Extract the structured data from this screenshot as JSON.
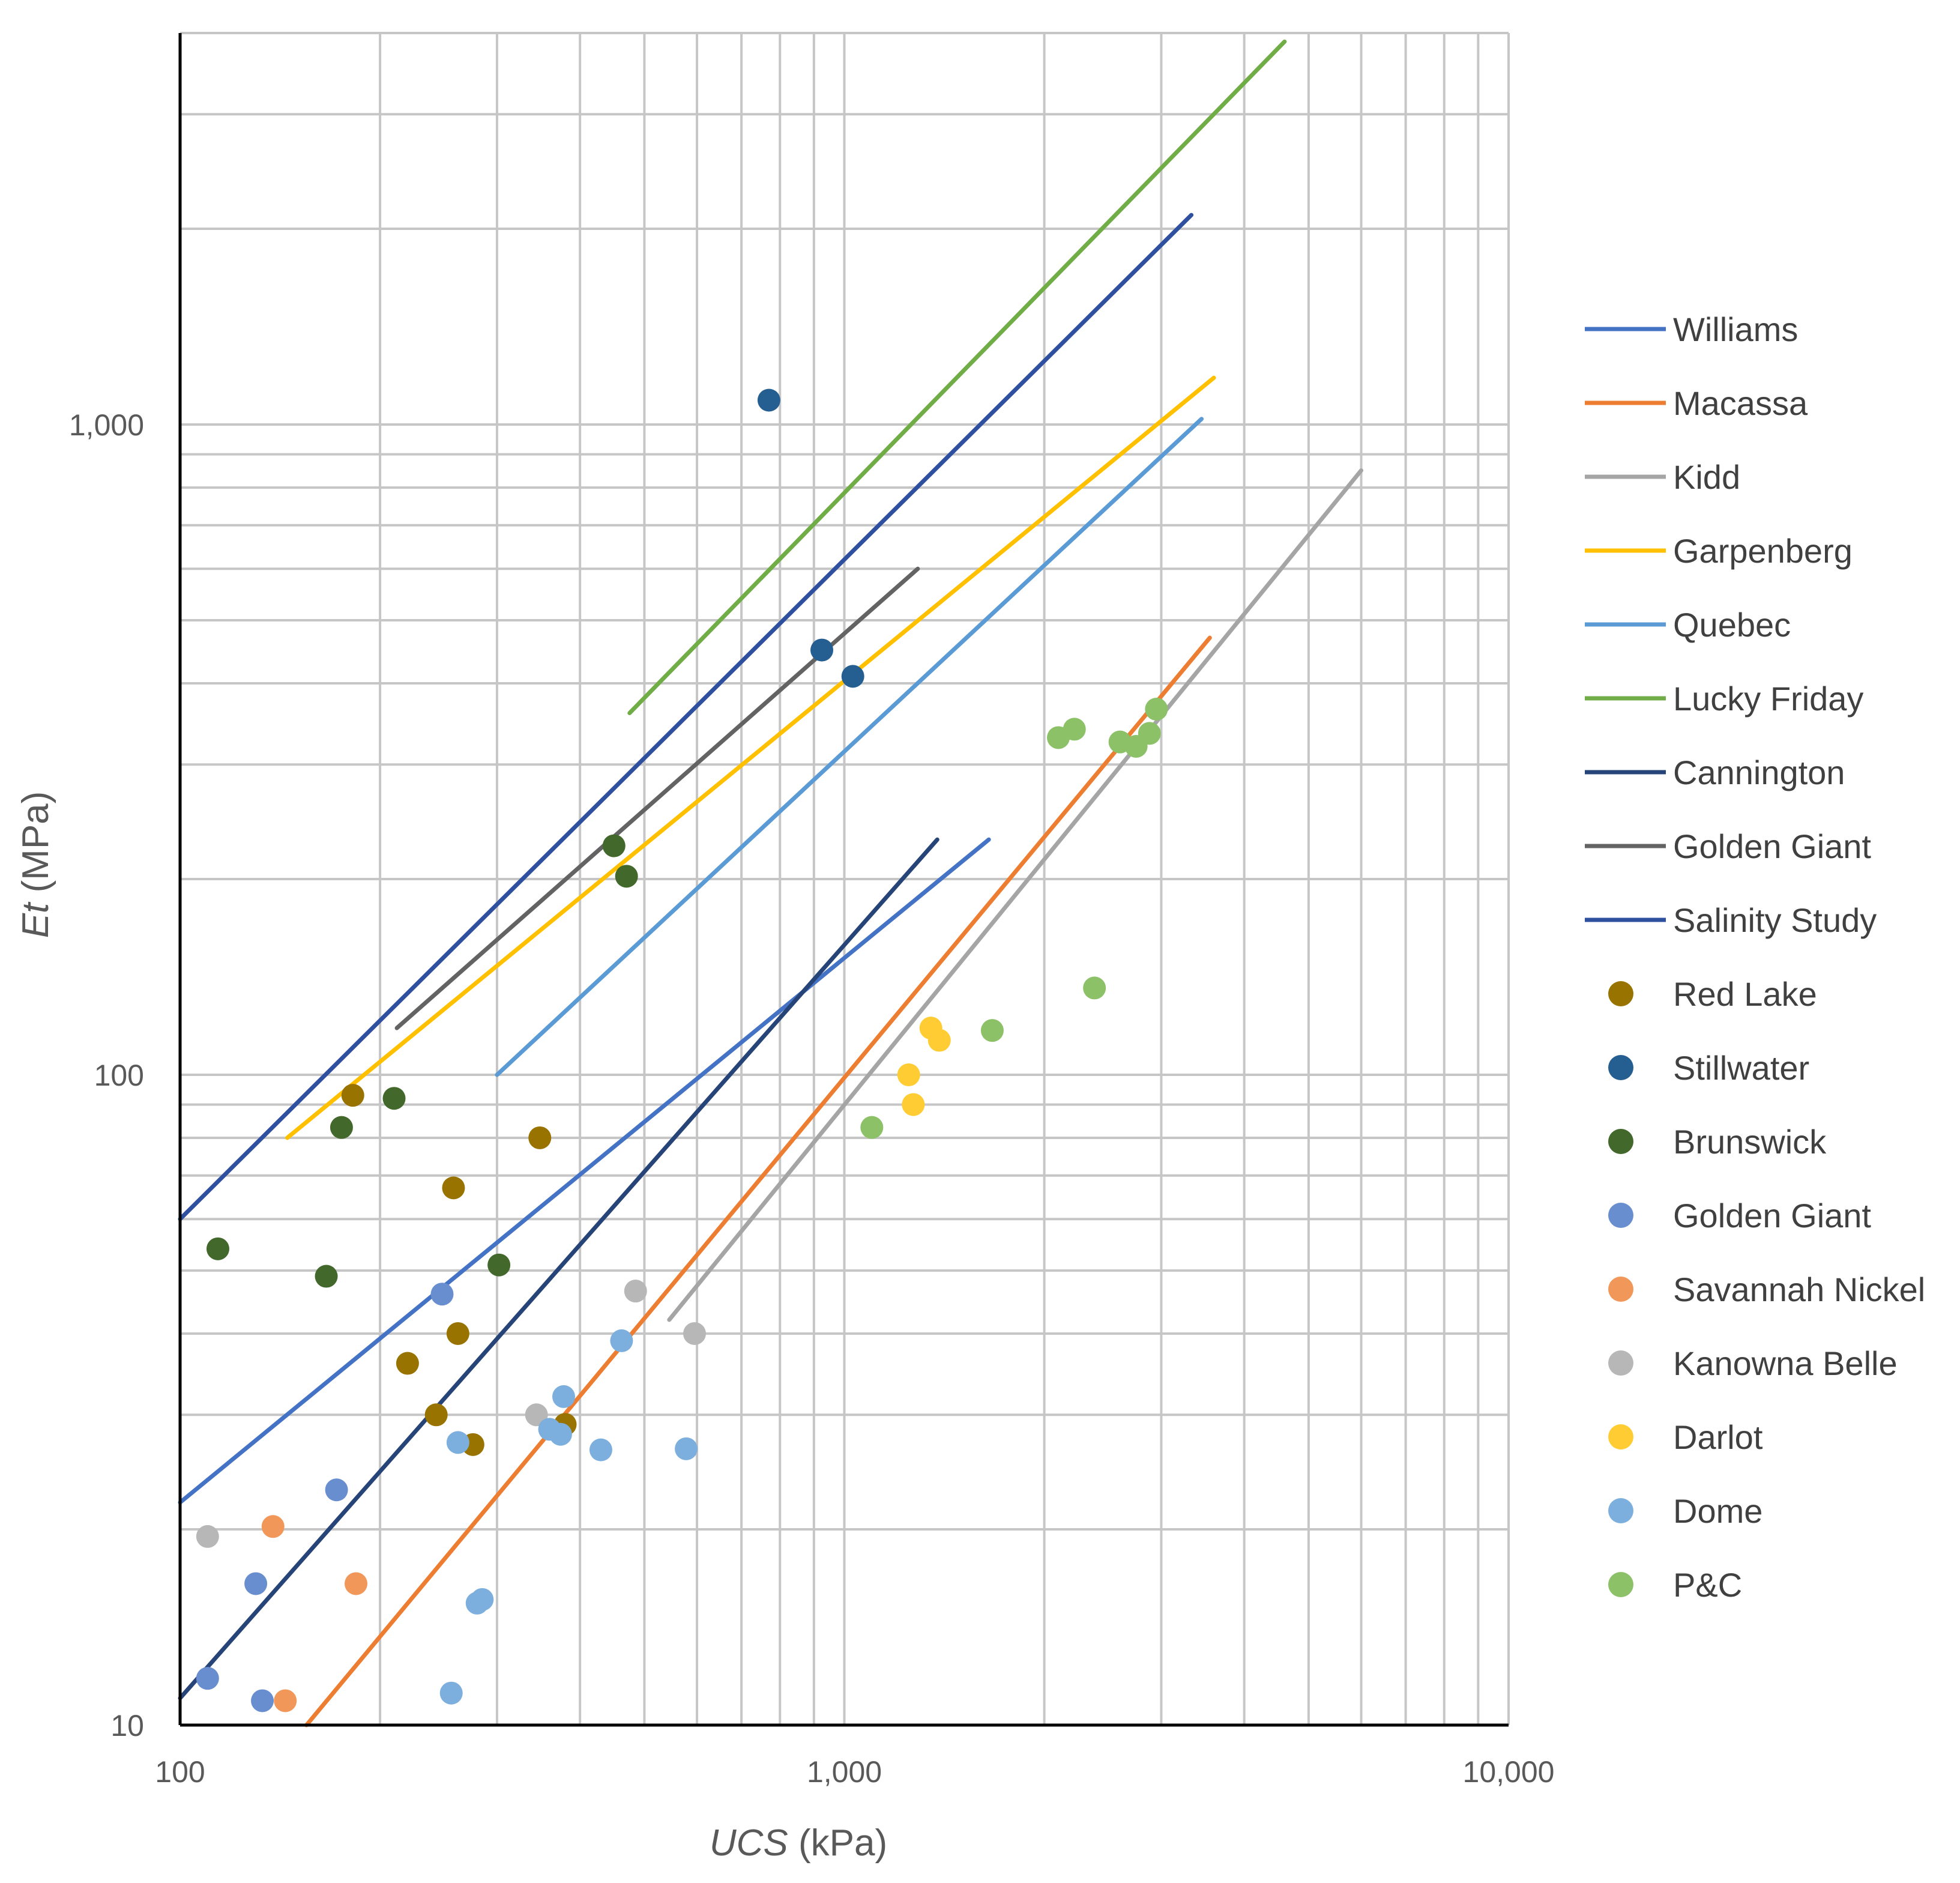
{
  "chart_data": {
    "type": "scatter",
    "xscale": "log",
    "yscale": "log",
    "xlim": [
      100,
      10000
    ],
    "ylim": [
      10,
      4000
    ],
    "x_ticks": [
      100,
      1000,
      10000
    ],
    "x_tick_labels": [
      "100",
      "1,000",
      "10,000"
    ],
    "y_ticks": [
      10,
      100,
      1000
    ],
    "y_tick_labels": [
      "10",
      "100",
      "1,000"
    ],
    "xlabel_italic": "UCS",
    "xlabel_unit": " (kPa)",
    "ylabel_italic": "Et",
    "ylabel_unit": " (MPa)",
    "grid": true,
    "legend_position": "right",
    "lines": [
      {
        "name": "Williams",
        "color": "#4472C4",
        "x": [
          100,
          1650
        ],
        "y": [
          22,
          230
        ]
      },
      {
        "name": "Macassa",
        "color": "#ED7D31",
        "x": [
          155,
          3550
        ],
        "y": [
          10,
          470
        ]
      },
      {
        "name": "Kidd",
        "color": "#A5A5A5",
        "x": [
          545,
          6000
        ],
        "y": [
          42,
          850
        ]
      },
      {
        "name": "Garpenberg",
        "color": "#FFC000",
        "x": [
          145,
          3600
        ],
        "y": [
          80,
          1180
        ]
      },
      {
        "name": "Quebec",
        "color": "#5B9BD5",
        "x": [
          300,
          3450
        ],
        "y": [
          100,
          1020
        ]
      },
      {
        "name": "Lucky Friday",
        "color": "#70AD47",
        "x": [
          475,
          4600
        ],
        "y": [
          360,
          3880
        ]
      },
      {
        "name": "Cannington",
        "color": "#264478",
        "x": [
          100,
          1380
        ],
        "y": [
          11,
          230
        ]
      },
      {
        "name": "Golden Giant",
        "color": "#636363",
        "x": [
          212,
          1290
        ],
        "y": [
          118,
          600
        ]
      },
      {
        "name": "Salinity Study",
        "color": "#2F4F9F",
        "x": [
          100,
          3330
        ],
        "y": [
          60,
          2100
        ]
      }
    ],
    "series": [
      {
        "name": "Red Lake",
        "color": "#997300",
        "points": [
          [
            182,
            93
          ],
          [
            348,
            80
          ],
          [
            258,
            67
          ],
          [
            220,
            36
          ],
          [
            262,
            40
          ],
          [
            243,
            30
          ],
          [
            276,
            27
          ],
          [
            380,
            29
          ]
        ]
      },
      {
        "name": "Stillwater",
        "color": "#255E91",
        "points": [
          [
            770,
            1090
          ],
          [
            925,
            450
          ],
          [
            1030,
            410
          ]
        ]
      },
      {
        "name": "Brunswick",
        "color": "#43682B",
        "points": [
          [
            114,
            54
          ],
          [
            175,
            83
          ],
          [
            210,
            92
          ],
          [
            166,
            49
          ],
          [
            302,
            51
          ],
          [
            450,
            225
          ],
          [
            470,
            202
          ]
        ]
      },
      {
        "name": "Golden Giant",
        "color": "#698ED0",
        "points": [
          [
            248,
            46
          ],
          [
            172,
            23
          ],
          [
            110,
            11.8
          ],
          [
            130,
            16.5
          ],
          [
            133,
            10.9
          ]
        ]
      },
      {
        "name": "Savannah Nickel",
        "color": "#F1975A",
        "points": [
          [
            138,
            20.2
          ],
          [
            184,
            16.5
          ],
          [
            144,
            10.9
          ]
        ]
      },
      {
        "name": "Kanowna Belle",
        "color": "#B7B7B7",
        "points": [
          [
            110,
            19.5
          ],
          [
            485,
            46.5
          ],
          [
            595,
            40
          ],
          [
            344,
            30
          ]
        ]
      },
      {
        "name": "Darlot",
        "color": "#FFCD33",
        "points": [
          [
            1250,
            100
          ],
          [
            1270,
            90
          ],
          [
            1350,
            118
          ],
          [
            1390,
            113
          ]
        ]
      },
      {
        "name": "Dome",
        "color": "#7CAFDD",
        "points": [
          [
            378,
            32
          ],
          [
            360,
            28.5
          ],
          [
            374,
            28
          ],
          [
            462,
            39
          ],
          [
            430,
            26.5
          ],
          [
            578,
            26.6
          ],
          [
            262,
            27.2
          ],
          [
            285,
            15.6
          ],
          [
            280,
            15.4
          ],
          [
            256,
            11.2
          ]
        ]
      },
      {
        "name": "P&C",
        "color": "#8CC168",
        "points": [
          [
            2100,
            330
          ],
          [
            2220,
            340
          ],
          [
            2600,
            325
          ],
          [
            2750,
            320
          ],
          [
            2880,
            335
          ],
          [
            2950,
            365
          ],
          [
            1670,
            117
          ],
          [
            2380,
            136
          ],
          [
            1100,
            83
          ]
        ]
      }
    ]
  }
}
